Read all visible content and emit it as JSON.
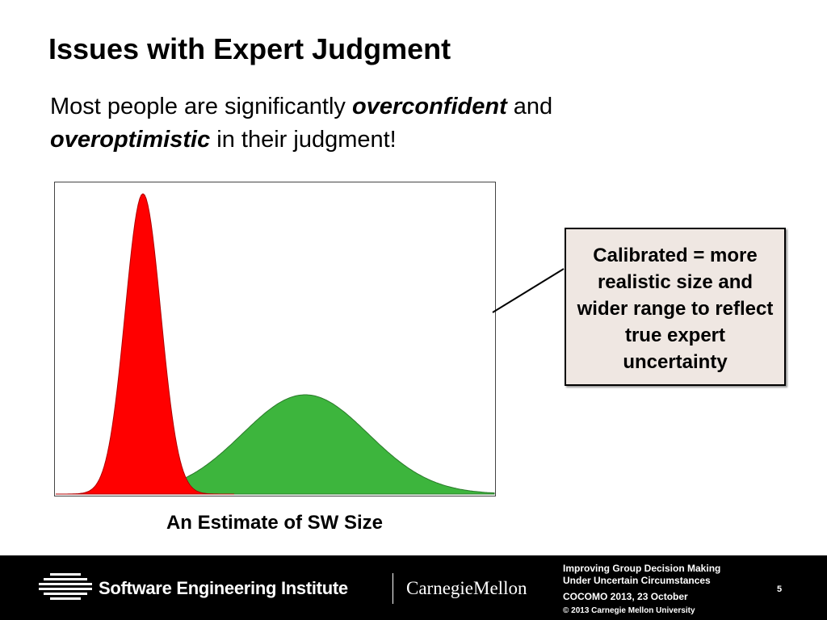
{
  "title": "Issues with Expert Judgment",
  "body": {
    "line1": [
      "Most people are significantly ",
      "overconfident",
      " and"
    ],
    "line2": [
      "overoptimistic",
      " in their judgment!"
    ]
  },
  "figure": {
    "caption": "An Estimate of SW Size"
  },
  "callout": "Calibrated = more realistic size and wider range to reflect true expert uncertainty",
  "footer": {
    "org": "Software Engineering Institute",
    "university": "CarnegieMellon",
    "presentation": [
      "Improving Group Decision Making",
      "Under Uncertain Circumstances"
    ],
    "event": "COCOMO 2013, 23 October",
    "copyright": "© 2013 Carnegie Mellon University",
    "page": "5"
  }
}
